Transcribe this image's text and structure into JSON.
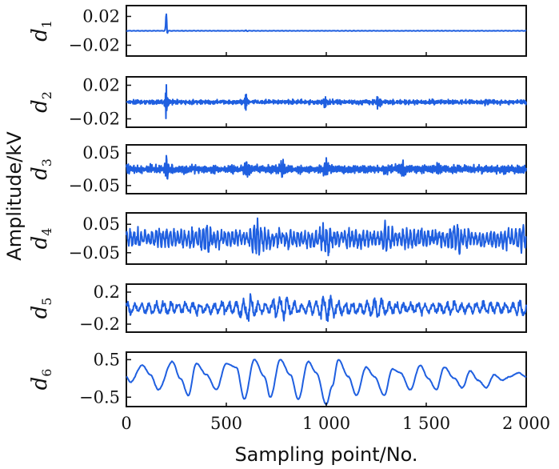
{
  "chart_data": {
    "type": "line",
    "ylabel": "Amplitude/kV",
    "xlabel": "Sampling point/No.",
    "xlim": [
      0,
      2000
    ],
    "x_ticks": [
      {
        "value": 0,
        "label": "0"
      },
      {
        "value": 500,
        "label": "500"
      },
      {
        "value": 1000,
        "label": "1 000"
      },
      {
        "value": 1500,
        "label": "1 500"
      },
      {
        "value": 2000,
        "label": "2 000"
      }
    ],
    "colors": {
      "trace": "#1f5fe0"
    },
    "panels": [
      {
        "name": "d",
        "sub": "1",
        "ylim": [
          -0.035,
          0.035
        ],
        "y_ticks": [
          {
            "value": 0.02,
            "label": "0.02"
          },
          {
            "value": -0.02,
            "label": "−0.02"
          }
        ],
        "base_amp": 0.0003,
        "freq": 0.9,
        "bursts": [
          [
            200,
            4,
            0.03
          ],
          [
            600,
            6,
            0.001
          ]
        ],
        "seed": 1
      },
      {
        "name": "d",
        "sub": "2",
        "ylim": [
          -0.03,
          0.03
        ],
        "y_ticks": [
          {
            "value": 0.02,
            "label": "0.02"
          },
          {
            "value": -0.02,
            "label": "−0.02"
          }
        ],
        "base_amp": 0.0025,
        "freq": 0.45,
        "bursts": [
          [
            200,
            6,
            0.022
          ],
          [
            600,
            8,
            0.012
          ],
          [
            990,
            10,
            0.007
          ],
          [
            1260,
            10,
            0.007
          ],
          [
            1800,
            8,
            0.004
          ]
        ],
        "seed": 2
      },
      {
        "name": "d",
        "sub": "3",
        "ylim": [
          -0.075,
          0.075
        ],
        "y_ticks": [
          {
            "value": 0.05,
            "label": "0.05"
          },
          {
            "value": -0.05,
            "label": "−0.05"
          }
        ],
        "base_amp": 0.012,
        "freq": 0.22,
        "bursts": [
          [
            200,
            10,
            0.03
          ],
          [
            600,
            12,
            0.025
          ],
          [
            780,
            14,
            0.02
          ],
          [
            1000,
            14,
            0.02
          ],
          [
            1380,
            12,
            0.018
          ],
          [
            1560,
            10,
            0.012
          ]
        ],
        "seed": 3
      },
      {
        "name": "d",
        "sub": "4",
        "ylim": [
          -0.09,
          0.09
        ],
        "y_ticks": [
          {
            "value": 0.05,
            "label": "0.05"
          },
          {
            "value": -0.05,
            "label": "−0.05"
          }
        ],
        "base_amp": 0.03,
        "freq": 0.11,
        "bursts": [
          [
            400,
            25,
            0.03
          ],
          [
            650,
            25,
            0.04
          ],
          [
            1000,
            25,
            0.03
          ],
          [
            1300,
            25,
            0.035
          ],
          [
            1650,
            25,
            0.03
          ],
          [
            1980,
            15,
            0.03
          ]
        ],
        "seed": 4
      },
      {
        "name": "d",
        "sub": "5",
        "ylim": [
          -0.3,
          0.3
        ],
        "y_ticks": [
          {
            "value": 0.2,
            "label": "0.2"
          },
          {
            "value": -0.2,
            "label": "−0.2"
          }
        ],
        "base_amp": 0.07,
        "freq": 0.055,
        "bursts": [
          [
            600,
            40,
            0.1
          ],
          [
            780,
            40,
            0.09
          ],
          [
            1000,
            40,
            0.11
          ],
          [
            1250,
            40,
            0.06
          ],
          [
            1980,
            20,
            0.05
          ]
        ],
        "seed": 5
      },
      {
        "name": "d",
        "sub": "6",
        "ylim": [
          -0.75,
          0.7
        ],
        "y_ticks": [
          {
            "value": 0.5,
            "label": "0.5"
          },
          {
            "value": -0.5,
            "label": "−0.5"
          }
        ],
        "base_amp": 0.0,
        "freq": 0.0,
        "bursts": [],
        "seed": 6,
        "wave": [
          [
            0,
            0.05
          ],
          [
            20,
            -0.1
          ],
          [
            80,
            0.35
          ],
          [
            120,
            0.1
          ],
          [
            160,
            -0.3
          ],
          [
            230,
            0.45
          ],
          [
            270,
            0.0
          ],
          [
            310,
            -0.45
          ],
          [
            350,
            0.4
          ],
          [
            400,
            0.1
          ],
          [
            450,
            -0.3
          ],
          [
            500,
            0.4
          ],
          [
            550,
            0.3
          ],
          [
            590,
            -0.55
          ],
          [
            640,
            0.5
          ],
          [
            690,
            0.05
          ],
          [
            720,
            -0.5
          ],
          [
            770,
            0.5
          ],
          [
            820,
            0.1
          ],
          [
            860,
            -0.55
          ],
          [
            910,
            0.45
          ],
          [
            950,
            0.15
          ],
          [
            1000,
            -0.7
          ],
          [
            1030,
            -0.2
          ],
          [
            1060,
            0.5
          ],
          [
            1110,
            0.05
          ],
          [
            1150,
            -0.45
          ],
          [
            1200,
            0.3
          ],
          [
            1240,
            0.05
          ],
          [
            1290,
            -0.45
          ],
          [
            1330,
            0.25
          ],
          [
            1370,
            0.15
          ],
          [
            1420,
            -0.3
          ],
          [
            1470,
            0.35
          ],
          [
            1510,
            0.0
          ],
          [
            1550,
            -0.3
          ],
          [
            1590,
            0.3
          ],
          [
            1640,
            0.0
          ],
          [
            1680,
            -0.25
          ],
          [
            1720,
            0.2
          ],
          [
            1760,
            -0.05
          ],
          [
            1800,
            -0.25
          ],
          [
            1840,
            0.1
          ],
          [
            1880,
            -0.05
          ],
          [
            1920,
            0.05
          ],
          [
            1960,
            0.15
          ],
          [
            2000,
            0.05
          ]
        ]
      }
    ]
  }
}
